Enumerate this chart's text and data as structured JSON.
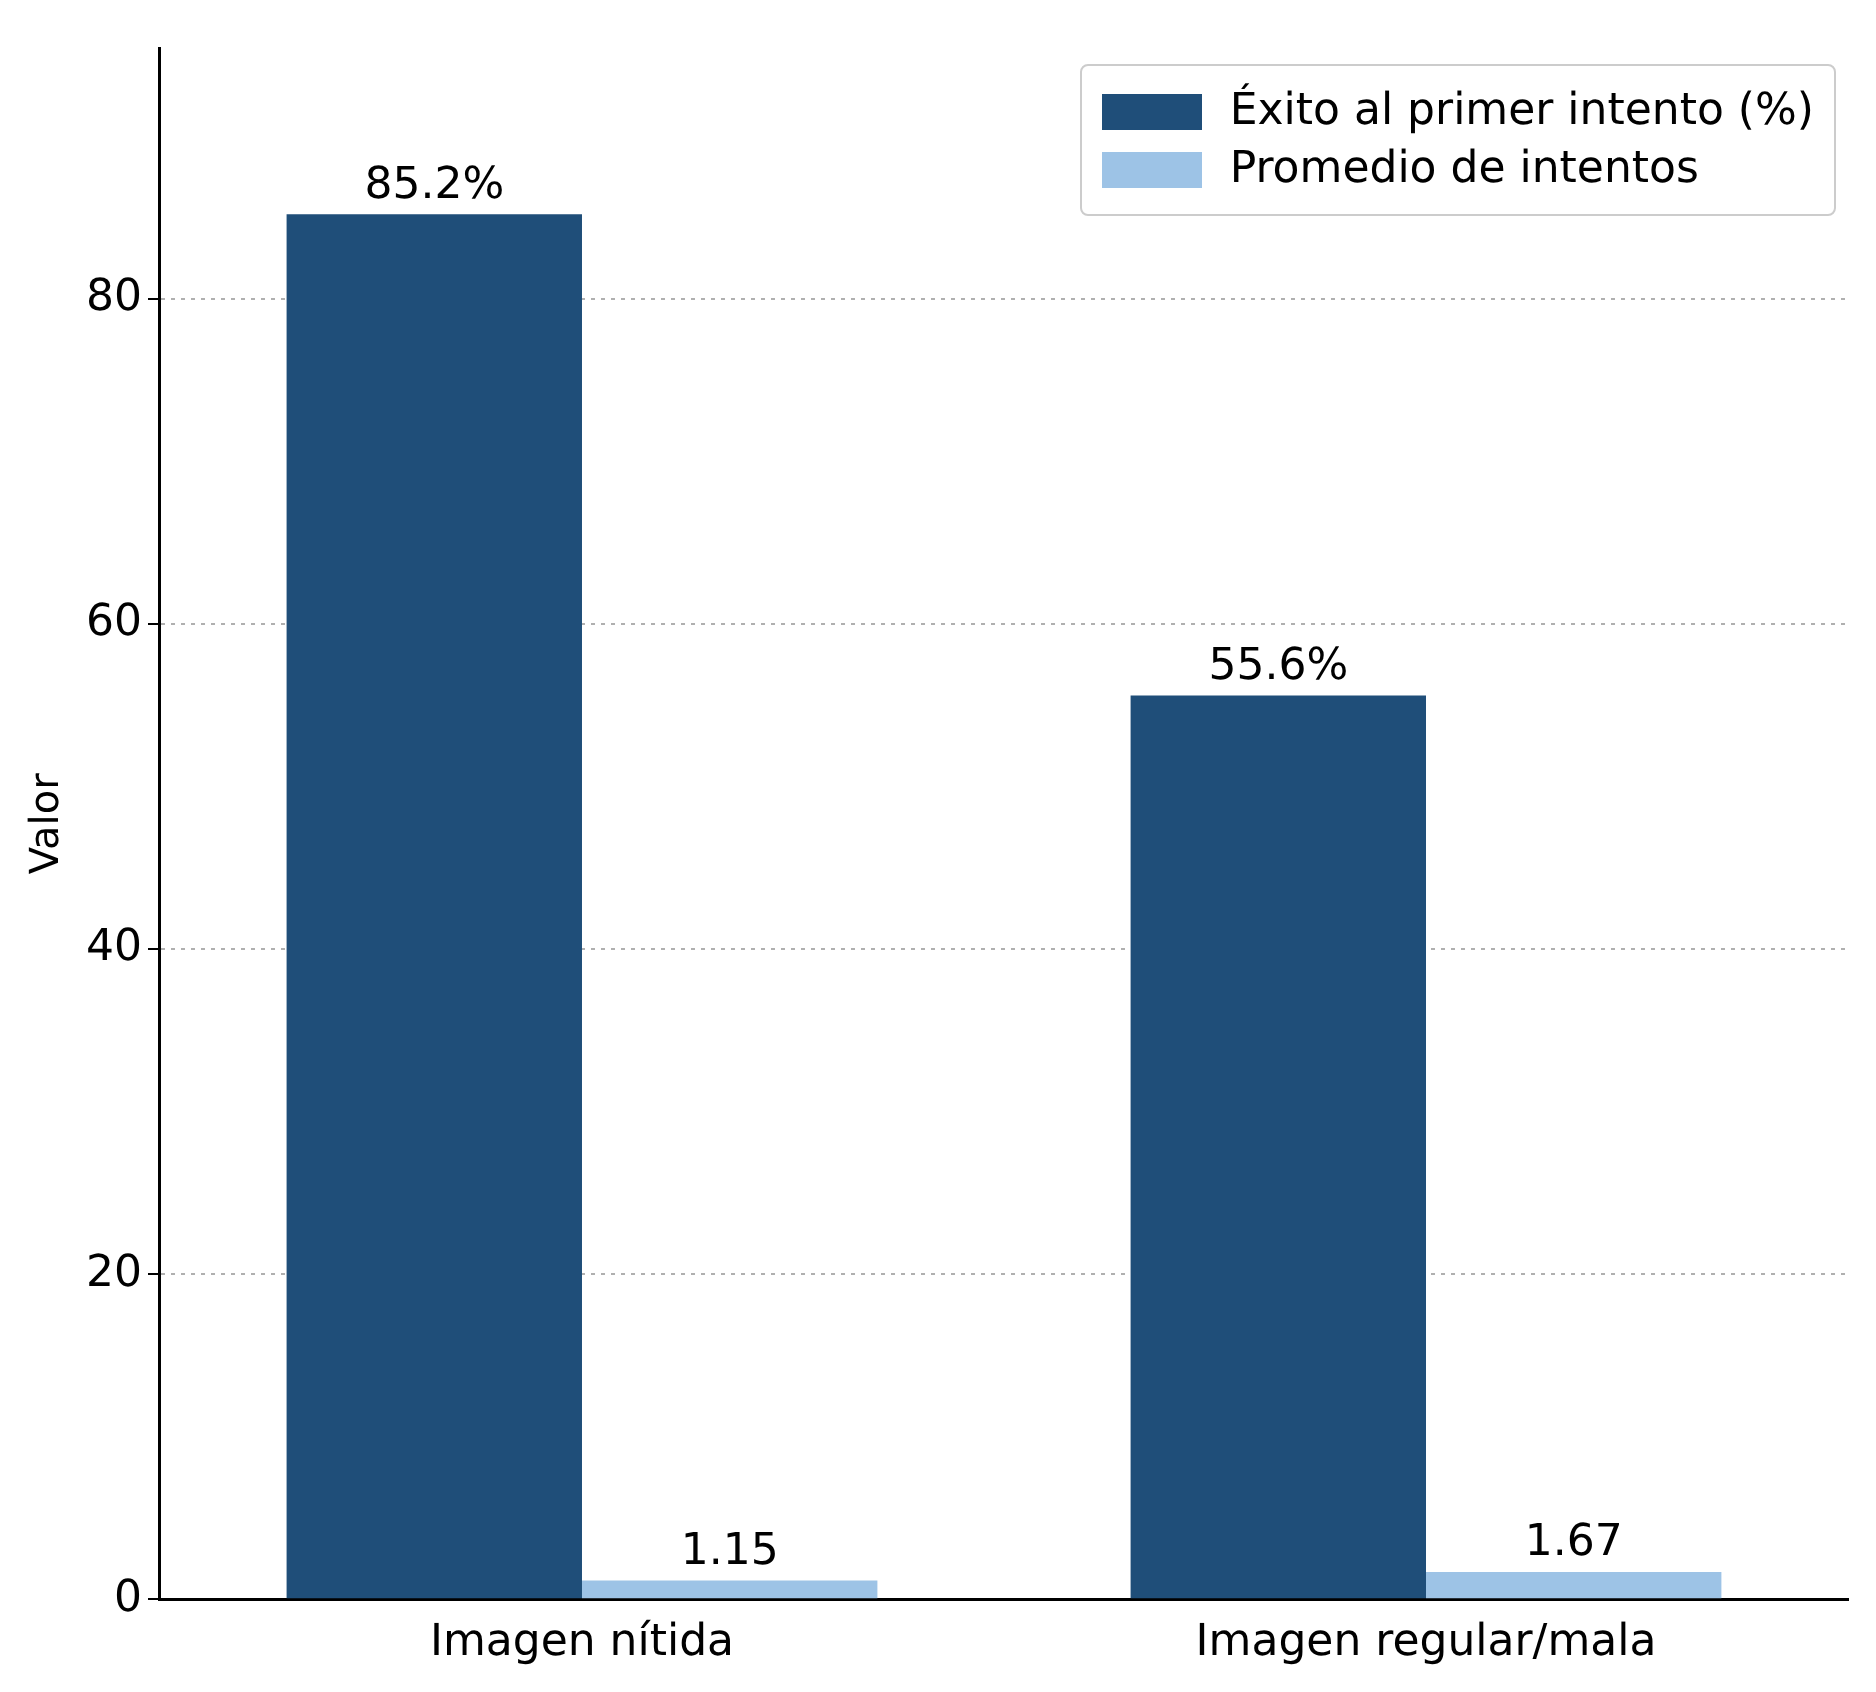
{
  "chart_data": {
    "type": "bar",
    "ylabel": "Valor",
    "categories": [
      "Imagen nítida",
      "Imagen regular/mala"
    ],
    "series": [
      {
        "name": "Éxito al primer intento (%)",
        "color": "#1f4e79",
        "values": [
          85.2,
          55.6
        ],
        "value_labels": [
          "85.2%",
          "55.6%"
        ]
      },
      {
        "name": "Promedio de intentos",
        "color": "#9dc3e6",
        "values": [
          1.15,
          1.67
        ],
        "value_labels": [
          "1.15",
          "1.67"
        ]
      }
    ],
    "ylim": [
      0,
      95.4
    ],
    "yticks": [
      0,
      20,
      40,
      60,
      80
    ],
    "grid": "y",
    "legend": "top right"
  }
}
